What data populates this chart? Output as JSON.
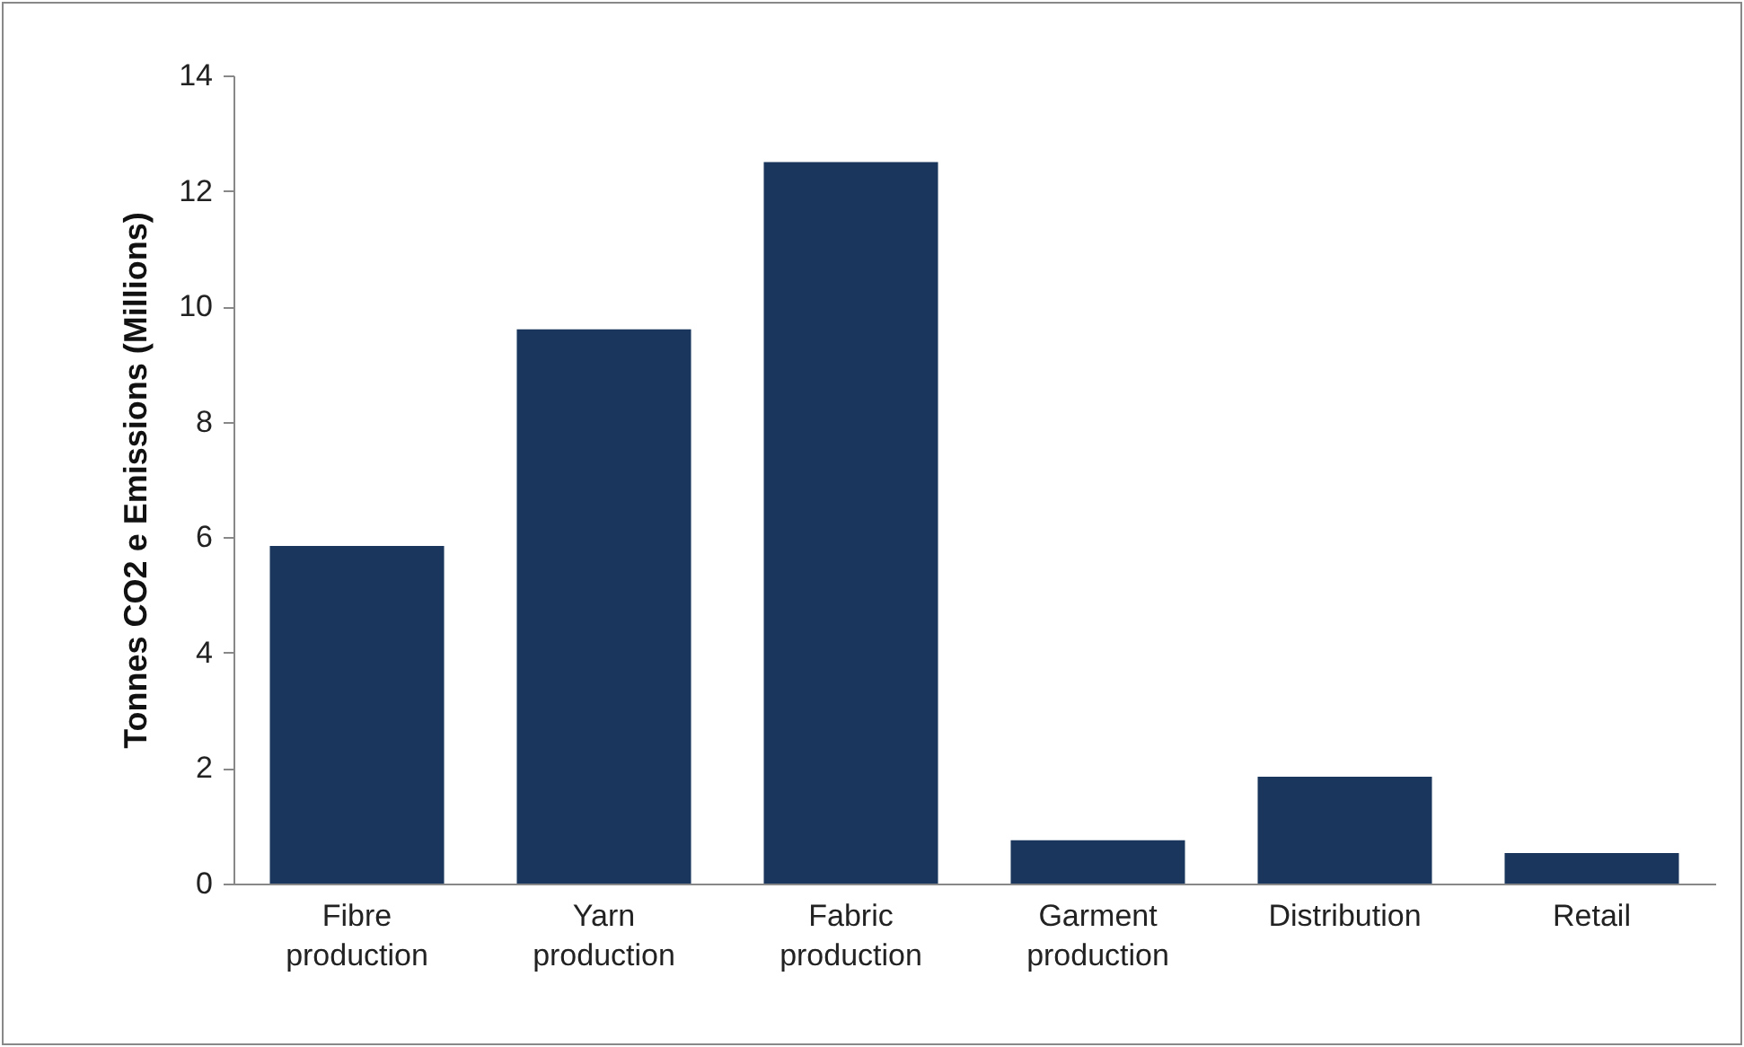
{
  "chart_data": {
    "type": "bar",
    "ylabel": "Tonnes CO2 e Emissions (Millions)",
    "categories": [
      "Fibre production",
      "Yarn production",
      "Fabric production",
      "Garment production",
      "Distribution",
      "Retail"
    ],
    "values": [
      5.85,
      9.6,
      12.5,
      0.75,
      1.85,
      0.53
    ],
    "color": "#1b365d",
    "ylim": [
      0,
      14
    ],
    "yticks": [
      0,
      2,
      4,
      6,
      8,
      10,
      12,
      14
    ],
    "grid": false
  }
}
